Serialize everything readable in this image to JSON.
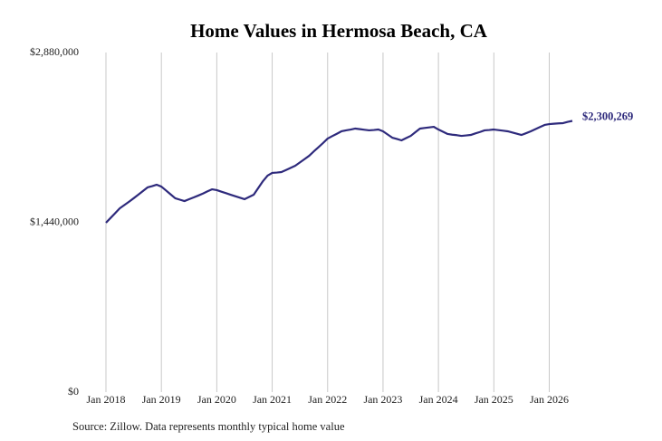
{
  "chart_data": {
    "type": "line",
    "title": "Home Values in Hermosa Beach, CA",
    "source": "Source: Zillow. Data represents monthly typical home value",
    "x": [
      "2018-01",
      "2018-02",
      "2018-03",
      "2018-04",
      "2018-05",
      "2018-06",
      "2018-07",
      "2018-08",
      "2018-09",
      "2018-10",
      "2018-11",
      "2018-12",
      "2019-01",
      "2019-02",
      "2019-03",
      "2019-04",
      "2019-05",
      "2019-06",
      "2019-07",
      "2019-08",
      "2019-09",
      "2019-10",
      "2019-11",
      "2019-12",
      "2020-01",
      "2020-02",
      "2020-03",
      "2020-04",
      "2020-05",
      "2020-06",
      "2020-07",
      "2020-08",
      "2020-09",
      "2020-10",
      "2020-11",
      "2020-12",
      "2021-01",
      "2021-02",
      "2021-03",
      "2021-04",
      "2021-05",
      "2021-06",
      "2021-07",
      "2021-08",
      "2021-09",
      "2021-10",
      "2021-11",
      "2021-12",
      "2022-01",
      "2022-02",
      "2022-03",
      "2022-04",
      "2022-05",
      "2022-06",
      "2022-07",
      "2022-08",
      "2022-09",
      "2022-10",
      "2022-11",
      "2022-12",
      "2023-01",
      "2023-02",
      "2023-03",
      "2023-04",
      "2023-05",
      "2023-06",
      "2023-07",
      "2023-08",
      "2023-09",
      "2023-10",
      "2023-11",
      "2023-12",
      "2024-01",
      "2024-02",
      "2024-03",
      "2024-04",
      "2024-05",
      "2024-06",
      "2024-07",
      "2024-08",
      "2024-09",
      "2024-10",
      "2024-11",
      "2024-12",
      "2025-01",
      "2025-02",
      "2025-03",
      "2025-04",
      "2025-05",
      "2025-06",
      "2025-07",
      "2025-08",
      "2025-09",
      "2025-10",
      "2025-11",
      "2025-12",
      "2026-01",
      "2026-02",
      "2026-03",
      "2026-04",
      "2026-05",
      "2026-06"
    ],
    "series": [
      {
        "color": "#2e2a7c",
        "values": [
          1436000,
          1477000,
          1518000,
          1559000,
          1587000,
          1615000,
          1644000,
          1674000,
          1705000,
          1736000,
          1747000,
          1759000,
          1743000,
          1710000,
          1677000,
          1644000,
          1632000,
          1620000,
          1636000,
          1651000,
          1667000,
          1684000,
          1703000,
          1720000,
          1713000,
          1700000,
          1687000,
          1674000,
          1661000,
          1649000,
          1636000,
          1655000,
          1674000,
          1732000,
          1789000,
          1836000,
          1859000,
          1862000,
          1866000,
          1884000,
          1902000,
          1920000,
          1948000,
          1976000,
          2004000,
          2041000,
          2076000,
          2112000,
          2150000,
          2171000,
          2191000,
          2212000,
          2220000,
          2227000,
          2235000,
          2230000,
          2225000,
          2220000,
          2223000,
          2227000,
          2212000,
          2185000,
          2158000,
          2147000,
          2135000,
          2154000,
          2173000,
          2204000,
          2235000,
          2240000,
          2245000,
          2250000,
          2227000,
          2208000,
          2189000,
          2183000,
          2179000,
          2173000,
          2177000,
          2181000,
          2194000,
          2206000,
          2220000,
          2223000,
          2227000,
          2222000,
          2217000,
          2212000,
          2202000,
          2191000,
          2181000,
          2196000,
          2212000,
          2230000,
          2248000,
          2266000,
          2273000,
          2276000,
          2279000,
          2281000,
          2292000,
          2300269
        ],
        "value_labels": [
          null,
          null,
          null,
          null,
          null,
          null,
          null,
          null,
          null,
          null,
          null,
          null,
          null,
          null,
          null,
          null,
          null,
          null,
          null,
          null,
          null,
          null,
          null,
          null,
          null,
          null,
          null,
          null,
          null,
          null,
          null,
          null,
          null,
          null,
          null,
          null,
          null,
          null,
          null,
          null,
          null,
          null,
          null,
          null,
          null,
          null,
          null,
          null,
          null,
          null,
          null,
          null,
          null,
          null,
          null,
          null,
          null,
          null,
          null,
          null,
          null,
          null,
          null,
          null,
          null,
          null,
          null,
          null,
          null,
          null,
          null,
          null,
          null,
          null,
          null,
          null,
          null,
          null,
          null,
          null,
          null,
          null,
          null,
          null,
          null,
          null,
          null,
          null,
          null,
          null,
          null,
          null,
          null,
          null,
          null,
          null,
          null,
          null,
          null,
          null,
          null,
          "$2,300,269"
        ]
      }
    ],
    "xlim": [
      "2018-01",
      "2026-06"
    ],
    "xticks": [
      {
        "value": "2018-01",
        "label": "Jan 2018"
      },
      {
        "value": "2019-01",
        "label": "Jan 2019"
      },
      {
        "value": "2020-01",
        "label": "Jan 2020"
      },
      {
        "value": "2021-01",
        "label": "Jan 2021"
      },
      {
        "value": "2022-01",
        "label": "Jan 2022"
      },
      {
        "value": "2023-01",
        "label": "Jan 2023"
      },
      {
        "value": "2024-01",
        "label": "Jan 2024"
      },
      {
        "value": "2025-01",
        "label": "Jan 2025"
      },
      {
        "value": "2026-01",
        "label": "Jan 2026"
      }
    ],
    "ylim": [
      0,
      2880000
    ],
    "yticks": [
      {
        "value": 0,
        "label": "$0"
      },
      {
        "value": 1440000,
        "label": "$1,440,000"
      },
      {
        "value": 2880000,
        "label": "$2,880,000"
      }
    ],
    "grid": "x"
  }
}
